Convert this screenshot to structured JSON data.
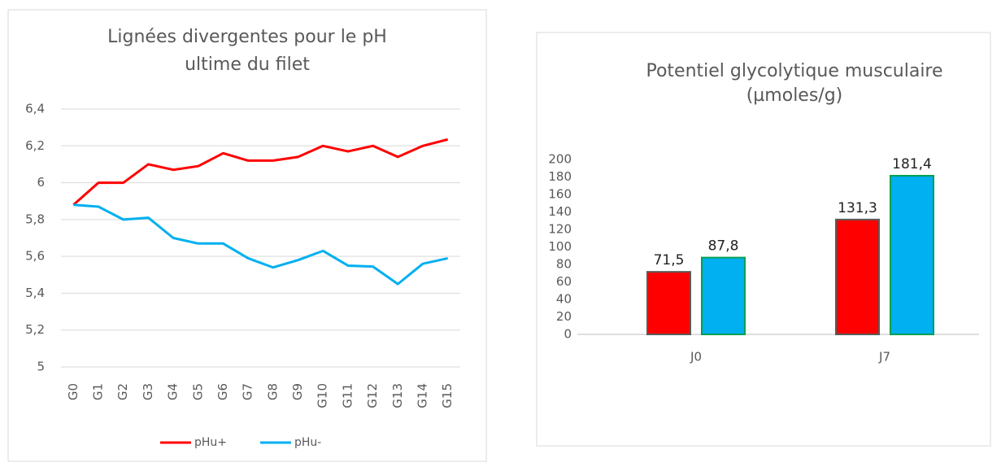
{
  "chart_data": [
    {
      "type": "line",
      "title": [
        "Lignées divergentes pour le pH",
        "ultime du filet"
      ],
      "categories": [
        "G0",
        "G1",
        "G2",
        "G3",
        "G4",
        "G5",
        "G6",
        "G7",
        "G8",
        "G9",
        "G10",
        "G11",
        "G12",
        "G13",
        "G14",
        "G15"
      ],
      "series": [
        {
          "name": "pHu+",
          "color": "#ff0000",
          "values": [
            5.88,
            6.0,
            6.0,
            6.1,
            6.07,
            6.09,
            6.16,
            6.12,
            6.12,
            6.14,
            6.2,
            6.17,
            6.2,
            6.14,
            6.2,
            6.235
          ]
        },
        {
          "name": "pHu-",
          "color": "#00b0f0",
          "values": [
            5.88,
            5.87,
            5.8,
            5.81,
            5.7,
            5.67,
            5.67,
            5.59,
            5.54,
            5.58,
            5.63,
            5.55,
            5.545,
            5.45,
            5.56,
            5.59
          ]
        }
      ],
      "ylim": [
        5,
        6.4
      ],
      "yticks": [
        5,
        {
          "value": 5.2,
          "label": "5,2"
        },
        {
          "value": 5.4,
          "label": "5,4"
        },
        {
          "value": 5.6,
          "label": "5,6"
        },
        {
          "value": 5.8,
          "label": "5,8"
        },
        6,
        {
          "value": 6.2,
          "label": "6,2"
        },
        {
          "value": 6.4,
          "label": "6,4"
        }
      ],
      "grid": true,
      "legend": "bottom"
    },
    {
      "type": "bar",
      "title": [
        "Potentiel glycolytique musculaire",
        "(µmoles/g)"
      ],
      "categories": [
        "J0",
        "J7"
      ],
      "series": [
        {
          "color": "#ff0000",
          "edgecolor": "#5a5a5a",
          "values": [
            71.5,
            131.3
          ],
          "value_labels": [
            "71,5",
            "131,3"
          ]
        },
        {
          "color": "#00b0f0",
          "edgecolor": "#00a050",
          "values": [
            87.8,
            181.4
          ],
          "value_labels": [
            "87,8",
            "181,4"
          ]
        }
      ],
      "ylim": [
        0,
        200
      ],
      "yticks": [
        0,
        20,
        40,
        60,
        80,
        100,
        120,
        140,
        160,
        180,
        200
      ],
      "grid": false
    }
  ]
}
